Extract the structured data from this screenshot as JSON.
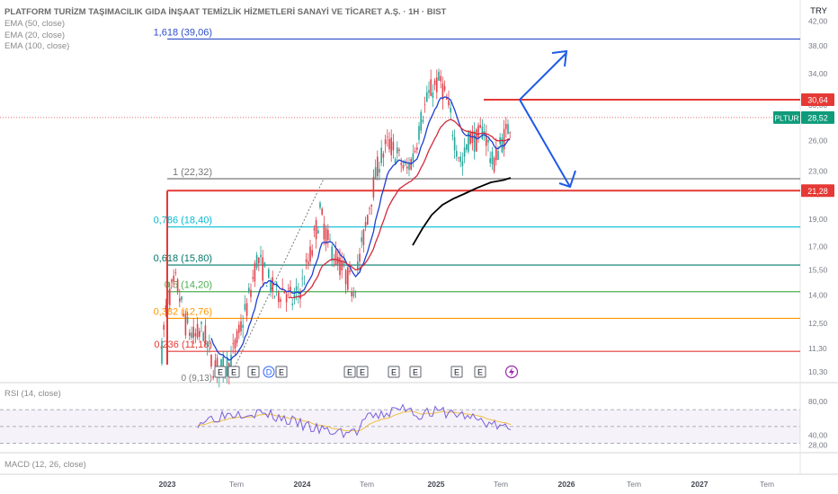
{
  "header": {
    "symbol_title": "PLATFORM TURİZM TAŞIMACILIK GIDA İNŞAAT TEMİZLİK HİZMETLERİ SANAYİ VE TİCARET A.Ş. · 1H · BIST",
    "currency": "TRY"
  },
  "indicators": {
    "ema50": "EMA (50, close)",
    "ema20": "EMA (20, close)",
    "ema100": "EMA (100, close)",
    "rsi": "RSI (14, close)",
    "macd": "MACD (12, 26, close)"
  },
  "colors": {
    "ema_blue": "#1e3fd0",
    "ema_red": "#d32a3c",
    "ema_black": "#000000",
    "candle_up": "#26a69a",
    "candle_down": "#e0414d",
    "arrow": "#1e5ae6",
    "rsi_line": "#7b60d8",
    "rsi_ma": "#f0c040",
    "pltur_badge": "#0f9b7a"
  },
  "chart_data": {
    "type": "candlestick",
    "y_scale": "log",
    "ylim": [
      9.9,
      42.5
    ],
    "y_ticks": [
      "42,00",
      "38,00",
      "34,00",
      "30,00",
      "26,00",
      "23,00",
      "21,00",
      "19,00",
      "17,00",
      "15,50",
      "14,00",
      "12,50",
      "11,30",
      "10,30"
    ],
    "x_ticks": [
      "2023",
      "Tem",
      "2024",
      "Tem",
      "2025",
      "Tem",
      "2026",
      "Tem",
      "2027",
      "Tem"
    ],
    "fib_levels": [
      {
        "label": "1,618 (39,06)",
        "value": 39.06,
        "color": "#2d4ec8"
      },
      {
        "label": "1 (22,32)",
        "value": 22.32,
        "color": "#787878"
      },
      {
        "label": "0,786 (18,40)",
        "value": 18.4,
        "color": "#00bcd4"
      },
      {
        "label": "0,618 (15,80)",
        "value": 15.8,
        "color": "#00796b"
      },
      {
        "label": "0,5 (14,20)",
        "value": 14.2,
        "color": "#4caf50"
      },
      {
        "label": "0,382 (12,76)",
        "value": 12.76,
        "color": "#ff9800"
      },
      {
        "label": "0,236 (11,18)",
        "value": 11.18,
        "color": "#e53935"
      },
      {
        "label": "0 (9,13)",
        "value": 9.13,
        "color": "#787878"
      }
    ],
    "price_lines": [
      {
        "label": "30,64",
        "value": 30.64,
        "color": "#e53935"
      },
      {
        "label": "21,28",
        "value": 21.28,
        "color": "#e53935"
      }
    ],
    "last_price": {
      "symbol": "PLTUR",
      "label": "28,52",
      "value": 28.52
    },
    "earnings_markers": [
      "E",
      "E",
      "E",
      "D",
      "E",
      "E",
      "E",
      "E",
      "E",
      "E",
      "E"
    ],
    "rsi": {
      "ylim": [
        20,
        100
      ],
      "ticks": [
        "80,00",
        "40,00",
        "28,00"
      ],
      "upper": 70,
      "middle": 50,
      "lower": 30
    }
  }
}
